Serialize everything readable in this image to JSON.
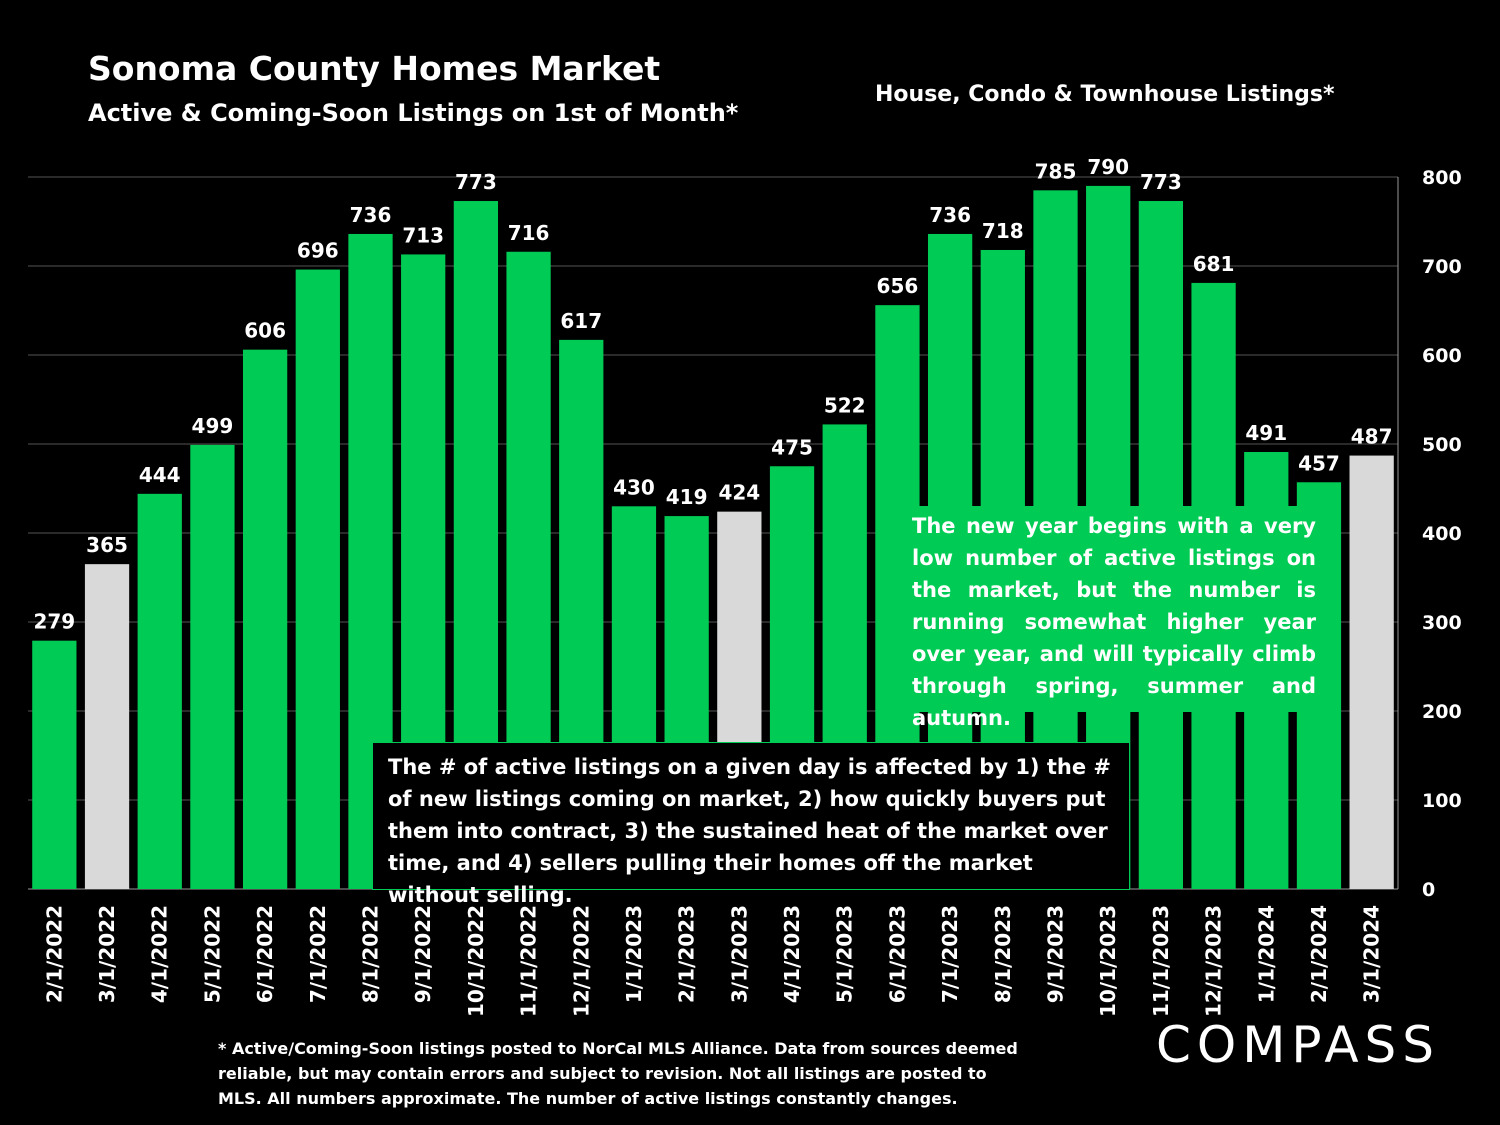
{
  "chart_data": {
    "type": "bar",
    "title": "Sonoma County Homes Market",
    "subtitle": "Active & Coming-Soon Listings on 1st of Month*",
    "categories": [
      "2/1/2022",
      "3/1/2022",
      "4/1/2022",
      "5/1/2022",
      "6/1/2022",
      "7/1/2022",
      "8/1/2022",
      "9/1/2022",
      "10/1/2022",
      "11/1/2022",
      "12/1/2022",
      "1/1/2023",
      "2/1/2023",
      "3/1/2023",
      "4/1/2023",
      "5/1/2023",
      "6/1/2023",
      "7/1/2023",
      "8/1/2023",
      "9/1/2023",
      "10/1/2023",
      "11/1/2023",
      "12/1/2023",
      "1/1/2024",
      "2/1/2024",
      "3/1/2024"
    ],
    "series": [
      {
        "name": "House, Condo & Townhouse Listings*",
        "color": "#00cc55",
        "values": [
          279,
          365,
          444,
          499,
          606,
          696,
          736,
          713,
          773,
          716,
          617,
          430,
          419,
          424,
          475,
          522,
          656,
          736,
          718,
          785,
          790,
          773,
          681,
          491,
          457,
          487
        ],
        "colors": [
          "#00cc55",
          "#d9d9d9",
          "#00cc55",
          "#00cc55",
          "#00cc55",
          "#00cc55",
          "#00cc55",
          "#00cc55",
          "#00cc55",
          "#00cc55",
          "#00cc55",
          "#00cc55",
          "#00cc55",
          "#d9d9d9",
          "#00cc55",
          "#00cc55",
          "#00cc55",
          "#00cc55",
          "#00cc55",
          "#00cc55",
          "#00cc55",
          "#00cc55",
          "#00cc55",
          "#00cc55",
          "#00cc55",
          "#d9d9d9"
        ]
      }
    ],
    "ylim": [
      0,
      800
    ],
    "yticks": [
      0,
      100,
      200,
      300,
      400,
      500,
      600,
      700,
      800
    ],
    "grid": true,
    "y_axis_side": "right",
    "annotations": [
      "The new year begins with a very low number of active listings on the market, but the number is running somewhat higher year over year, and will typically climb through spring, summer and autumn.",
      "The # of active listings on a given day is affected by 1) the # of new listings coming on market, 2) how quickly buyers put them into contract, 3) the sustained heat of the market over time, and 4) sellers pulling their homes off the market without selling."
    ],
    "footnote": "* Active/Coming-Soon listings posted to NorCal MLS Alliance.  Data from sources deemed reliable, but may contain errors and subject to revision.  Not all listings are posted to MLS. All numbers approximate. The number of active listings constantly changes.",
    "logo": "COMPASS"
  }
}
